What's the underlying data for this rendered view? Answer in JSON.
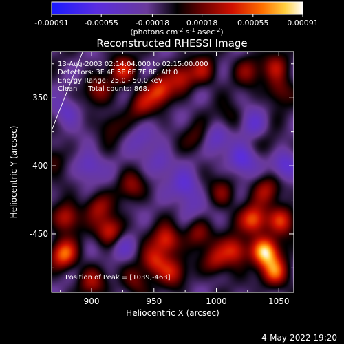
{
  "chart_data": {
    "type": "heatmap",
    "title": "Reconstructed RHESSI Image",
    "xlabel": "Heliocentric X (arcsec)",
    "ylabel": "Heliocentric Y (arcsec)",
    "xlim": [
      868,
      1062
    ],
    "ylim": [
      -493,
      -316
    ],
    "x_ticks": [
      "900",
      "950",
      "1000",
      "1050"
    ],
    "x_tick_values": [
      900,
      950,
      1000,
      1050
    ],
    "y_ticks": [
      "-350",
      "-400",
      "-450"
    ],
    "y_tick_values": [
      -350,
      -400,
      -450
    ],
    "colorbar": {
      "range": [
        -0.00091,
        0.00091
      ],
      "tick_labels": [
        "-0.00091",
        "-0.00055",
        "-0.00018",
        "0.00018",
        "0.00055",
        "0.00091"
      ],
      "tick_values": [
        -0.00091,
        -0.00055,
        -0.00018,
        0.00018,
        0.00055,
        0.00091
      ],
      "units_text": "(photons cm",
      "units_exp1": "-2",
      "units_mid": " s",
      "units_exp2": "-1",
      "units_tail": " asec",
      "units_exp3": "-2",
      "units_close": ")"
    },
    "info_lines": [
      "13-Aug-2003 02:14:04.000 to 02:15:00.000",
      "Detectors: 3F 4F 5F 6F 7F 8F, Att 0",
      "Energy Range: 25.0 - 50.0 keV",
      "Clean     Total counts: 868."
    ],
    "peak_text": "Position of Peak = [1039,-463]",
    "limb": [
      [
        868,
        -374
      ],
      [
        893,
        -316
      ]
    ],
    "sources": [
      {
        "x": 1039,
        "y": -463,
        "value": 0.00091
      },
      {
        "x": 1030,
        "y": -440,
        "value": 0.0007
      },
      {
        "x": 1015,
        "y": -462,
        "value": 0.0006
      },
      {
        "x": 1047,
        "y": -478,
        "value": 0.0007
      },
      {
        "x": 1052,
        "y": -440,
        "value": 0.0006
      },
      {
        "x": 1000,
        "y": -470,
        "value": 0.00045
      },
      {
        "x": 985,
        "y": -450,
        "value": 0.0004
      },
      {
        "x": 960,
        "y": -455,
        "value": 0.0006
      },
      {
        "x": 950,
        "y": -470,
        "value": 0.00055
      },
      {
        "x": 965,
        "y": -478,
        "value": 0.00045
      },
      {
        "x": 915,
        "y": -448,
        "value": 0.0006
      },
      {
        "x": 905,
        "y": -430,
        "value": 0.0004
      },
      {
        "x": 880,
        "y": -438,
        "value": 0.00055
      },
      {
        "x": 878,
        "y": -465,
        "value": 0.0007
      },
      {
        "x": 900,
        "y": -485,
        "value": 0.0004
      },
      {
        "x": 935,
        "y": -485,
        "value": 0.00035
      },
      {
        "x": 932,
        "y": -415,
        "value": 0.00035
      },
      {
        "x": 1005,
        "y": -420,
        "value": 0.00035
      },
      {
        "x": 1040,
        "y": -418,
        "value": 0.0004
      },
      {
        "x": 955,
        "y": -345,
        "value": 0.0006
      },
      {
        "x": 925,
        "y": -330,
        "value": 0.0005
      },
      {
        "x": 940,
        "y": -355,
        "value": 0.0004
      },
      {
        "x": 972,
        "y": -335,
        "value": 0.00045
      },
      {
        "x": 990,
        "y": -330,
        "value": 0.0004
      },
      {
        "x": 1025,
        "y": -330,
        "value": 0.00035
      },
      {
        "x": 1048,
        "y": -328,
        "value": 0.0004
      },
      {
        "x": 1050,
        "y": -345,
        "value": 0.00035
      },
      {
        "x": 905,
        "y": -345,
        "value": 0.00035
      },
      {
        "x": 915,
        "y": -370,
        "value": 0.00025
      },
      {
        "x": 985,
        "y": -380,
        "value": 0.00025
      },
      {
        "x": 1010,
        "y": -365,
        "value": 0.0002
      },
      {
        "x": 1045,
        "y": -385,
        "value": 0.00015
      },
      {
        "x": 870,
        "y": -395,
        "value": 0.00025
      },
      {
        "x": 955,
        "y": -398,
        "value": -0.0003
      },
      {
        "x": 1020,
        "y": -395,
        "value": -0.00045
      },
      {
        "x": 1000,
        "y": -380,
        "value": -0.0003
      },
      {
        "x": 1030,
        "y": -370,
        "value": -0.0003
      },
      {
        "x": 898,
        "y": -400,
        "value": -0.00035
      },
      {
        "x": 880,
        "y": -360,
        "value": -0.0003
      },
      {
        "x": 975,
        "y": -415,
        "value": -0.00035
      },
      {
        "x": 940,
        "y": -380,
        "value": -0.0002
      },
      {
        "x": 1055,
        "y": -400,
        "value": -0.0004
      },
      {
        "x": 925,
        "y": -460,
        "value": -0.0003
      },
      {
        "x": 980,
        "y": -430,
        "value": -0.0002
      }
    ]
  },
  "timestamp": "4-May-2022 19:20"
}
